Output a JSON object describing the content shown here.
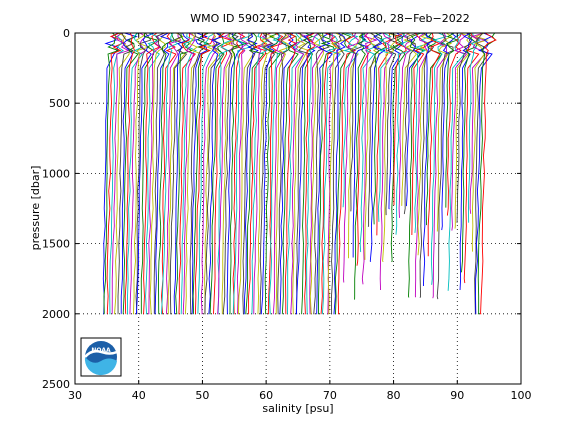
{
  "chart_data": {
    "type": "line",
    "title": "WMO ID 5902347, internal ID 5480, 28−Feb−2022",
    "xlabel": "salinity [psu]",
    "ylabel": "pressure [dbar]",
    "xlim": [
      30,
      100
    ],
    "ylim": [
      0,
      2500
    ],
    "y_reversed": true,
    "grid": "dotted",
    "xticks": [
      "30",
      "40",
      "50",
      "60",
      "70",
      "80",
      "90",
      "100"
    ],
    "yticks": [
      "0",
      "500",
      "1000",
      "1500",
      "2000",
      "2500"
    ],
    "profile_color_cycle": [
      "#0000ff",
      "#008000",
      "#ff0000",
      "#00bfbf",
      "#bf00bf",
      "#bfbf00",
      "#404040"
    ],
    "n_profiles": 150,
    "salinity_start": 35.0,
    "salinity_end": 94.5,
    "surface_mixed_layer_dbar": 150,
    "full_depth_dbar": 2000,
    "logo_text": "NOAA"
  }
}
